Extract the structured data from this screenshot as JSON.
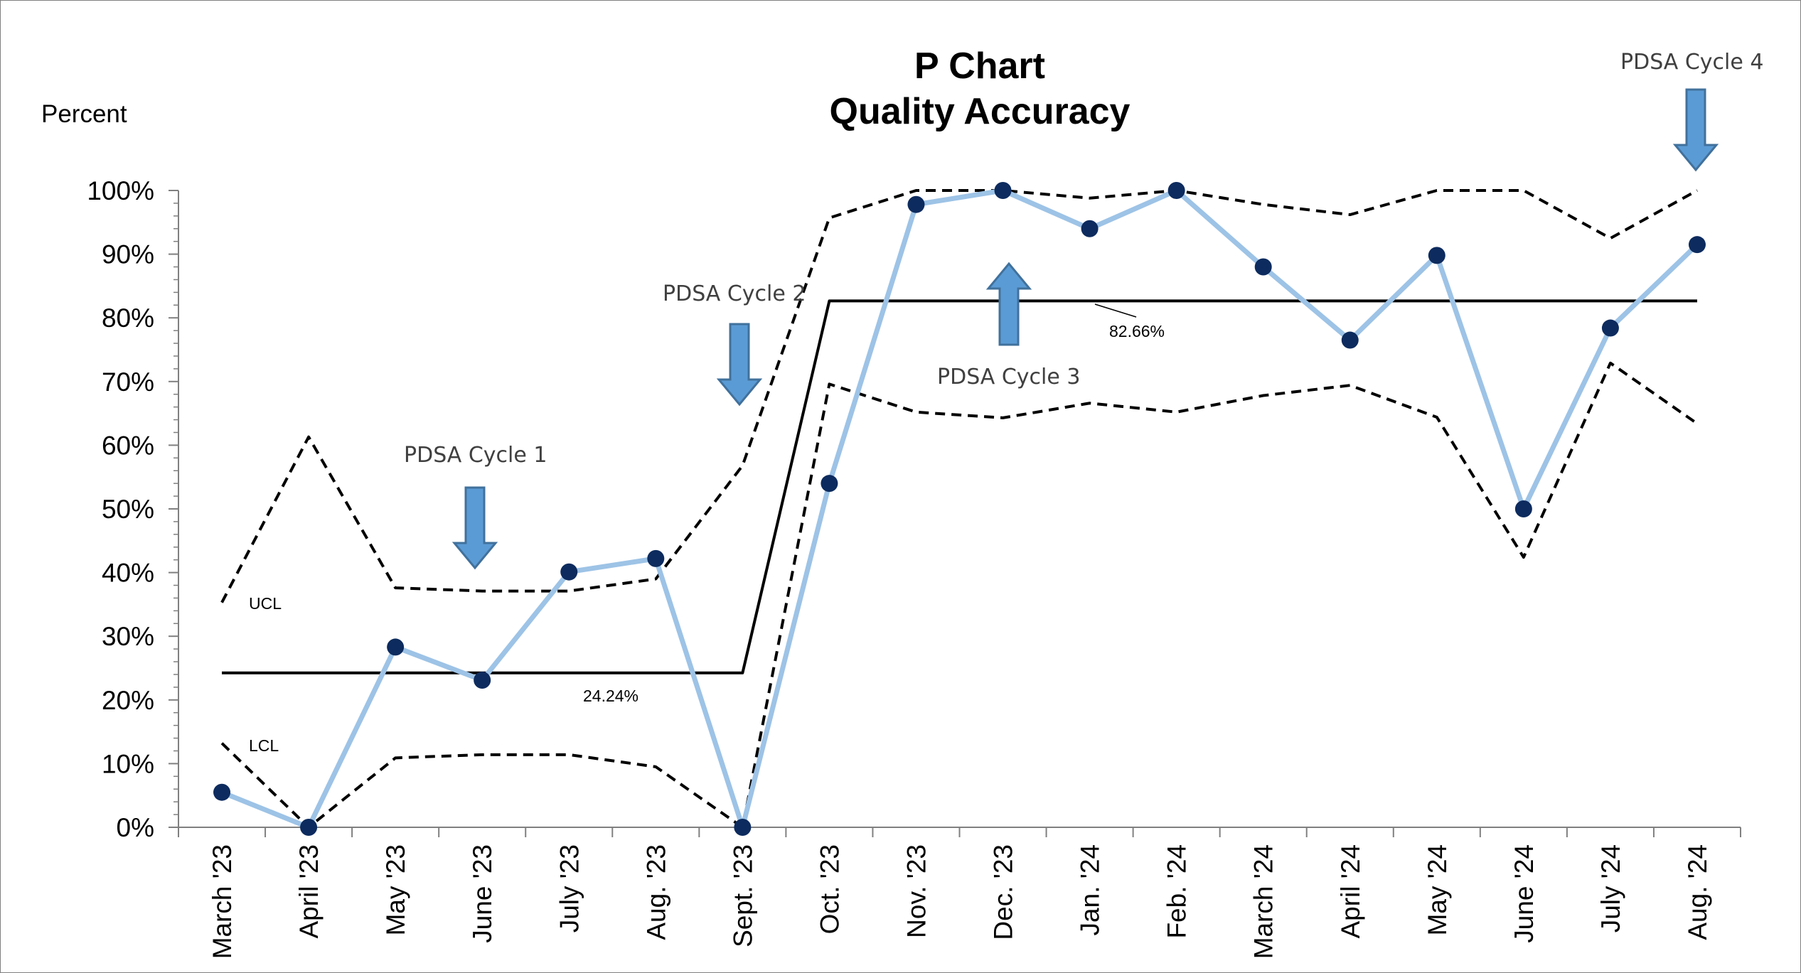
{
  "chart_data": {
    "type": "line",
    "title": "P Chart",
    "subtitle": "Quality Accuracy",
    "ylabel": "Percent",
    "xlabel": "",
    "ylim": [
      0,
      100
    ],
    "yticks": [
      "0%",
      "10%",
      "20%",
      "30%",
      "40%",
      "50%",
      "60%",
      "70%",
      "80%",
      "90%",
      "100%"
    ],
    "categories": [
      "March '23",
      "April '23",
      "May '23",
      "June '23",
      "July '23",
      "Aug. '23",
      "Sept. '23",
      "Oct. '23",
      "Nov. '23",
      "Dec. '23",
      "Jan. '24",
      "Feb. '24",
      "March '24",
      "April '24",
      "May '24",
      "June '24",
      "July '24",
      "Aug. '24"
    ],
    "series": [
      {
        "role": "percent",
        "color": "#9dc3e6",
        "marker_color": "#0d2b5e",
        "values": [
          5.5,
          0,
          28.3,
          23.1,
          40.1,
          42.2,
          0,
          54.0,
          97.8,
          100,
          94.0,
          100,
          88.0,
          76.5,
          89.8,
          50.0,
          78.4,
          91.5
        ]
      },
      {
        "role": "mean",
        "color": "#000000",
        "values": [
          24.24,
          24.24,
          24.24,
          24.24,
          24.24,
          24.24,
          24.24,
          82.66,
          82.66,
          82.66,
          82.66,
          82.66,
          82.66,
          82.66,
          82.66,
          82.66,
          82.66,
          82.66
        ]
      },
      {
        "role": "ucl",
        "color": "#000000",
        "values": [
          35.3,
          61.3,
          37.6,
          37.1,
          37.1,
          39.0,
          56.8,
          95.7,
          100,
          100,
          98.8,
          100,
          97.8,
          96.2,
          100,
          100,
          92.5,
          100
        ]
      },
      {
        "role": "lcl",
        "color": "#000000",
        "values": [
          13.2,
          0,
          10.9,
          11.4,
          11.4,
          9.5,
          0,
          69.6,
          65.2,
          64.3,
          66.6,
          65.2,
          67.8,
          69.4,
          64.4,
          42.4,
          72.9,
          63.4
        ]
      }
    ],
    "annotations": {
      "ucl_label": "UCL",
      "lcl_label": "LCL",
      "mean_label_1": "24.24%",
      "mean_label_2": "82.66%",
      "pdsa": [
        "PDSA Cycle 1",
        "PDSA Cycle 2",
        "PDSA Cycle 3",
        "PDSA Cycle 4"
      ]
    },
    "grid": false,
    "legend": "none"
  }
}
